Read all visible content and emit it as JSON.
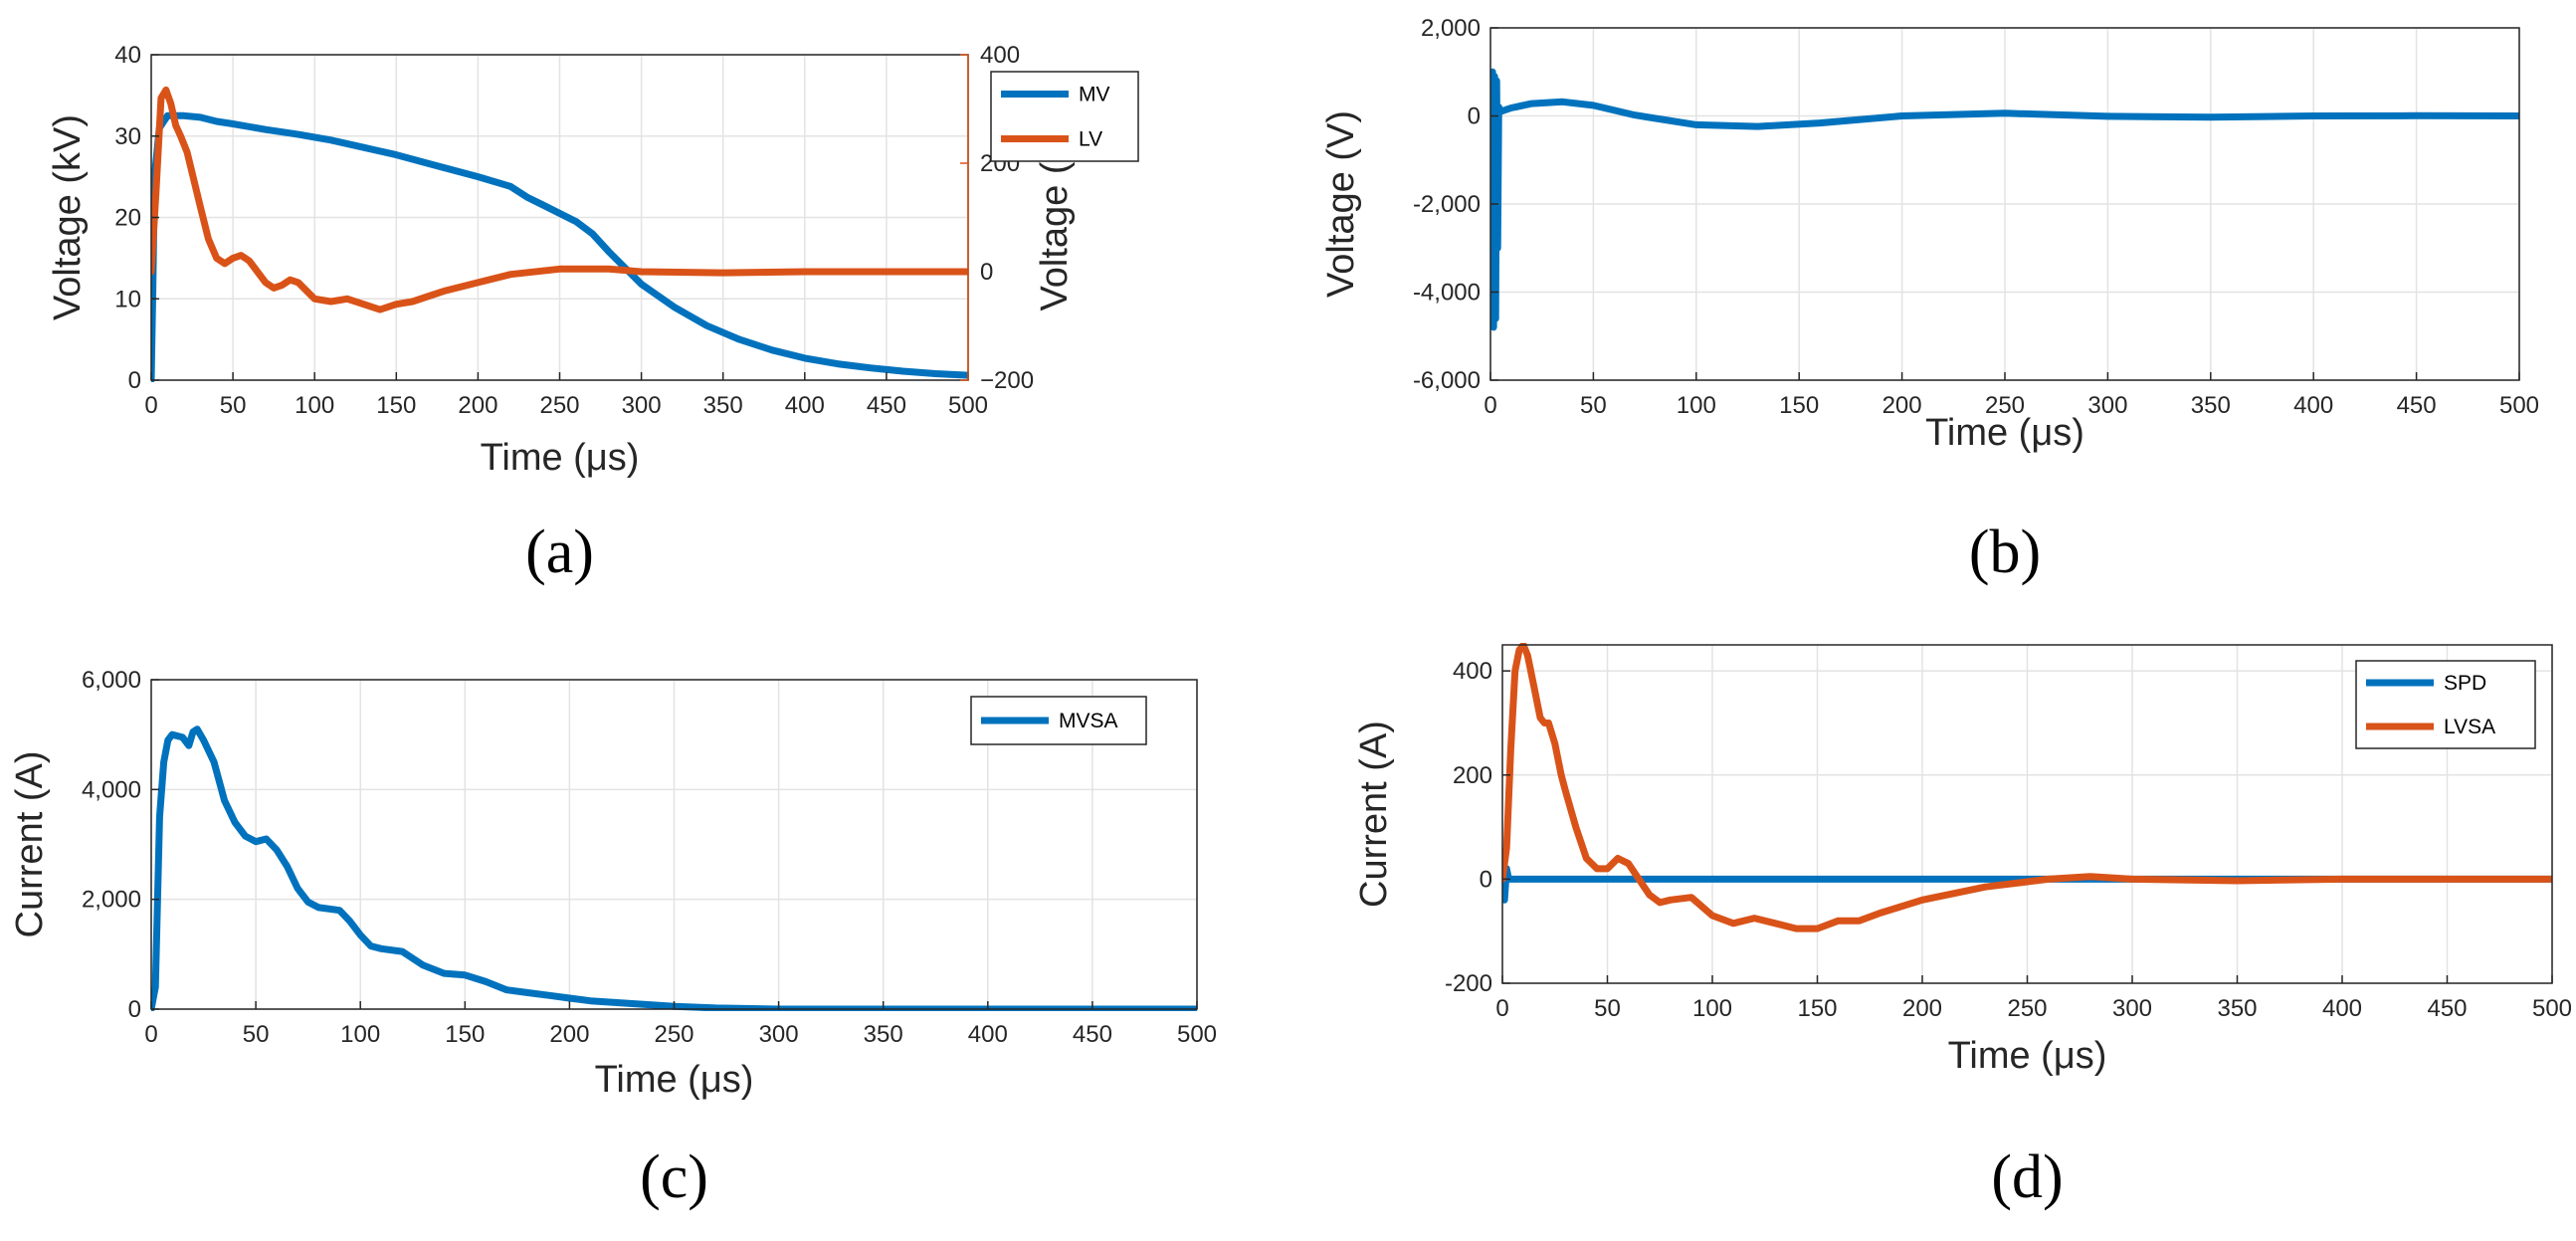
{
  "colors": {
    "blue": "#0072BD",
    "orange": "#D95319",
    "grid": "#e3e3e3",
    "axis": "#262626"
  },
  "chart_data": [
    {
      "id": "a",
      "panel_label": "(a)",
      "type": "line",
      "xlabel": "Time (μs)",
      "ylabel": "Voltage (kV)",
      "ylabel_right": "Voltage (V)",
      "xlim": [
        0,
        500
      ],
      "ylim": [
        0,
        40
      ],
      "ylim_right": [
        -200,
        400
      ],
      "xticks": [
        0,
        50,
        100,
        150,
        200,
        250,
        300,
        350,
        400,
        450,
        500
      ],
      "xtick_labels": [
        "0",
        "50",
        "100",
        "150",
        "200",
        "250",
        "300",
        "350",
        "400",
        "450",
        "500"
      ],
      "yticks": [
        0,
        10,
        20,
        30,
        40
      ],
      "ytick_labels": [
        "0",
        "10",
        "20",
        "30",
        "40"
      ],
      "yticks_right": [
        -200,
        0,
        200,
        400
      ],
      "ytick_labels_right": [
        "−200",
        "0",
        "200",
        "400"
      ],
      "grid": true,
      "legend": "top-right",
      "series": [
        {
          "name": "MV",
          "color": "blue",
          "axis": "left",
          "x": [
            0,
            1,
            2,
            5,
            10,
            20,
            30,
            40,
            50,
            70,
            90,
            110,
            130,
            150,
            170,
            200,
            220,
            230,
            240,
            260,
            270,
            280,
            300,
            320,
            340,
            360,
            380,
            400,
            420,
            440,
            460,
            480,
            500
          ],
          "y": [
            0,
            11,
            25,
            31,
            32.5,
            32.5,
            32.3,
            31.8,
            31.5,
            30.8,
            30.2,
            29.5,
            28.6,
            27.7,
            26.6,
            25.0,
            23.8,
            22.5,
            21.5,
            19.5,
            18.0,
            15.8,
            11.8,
            9.0,
            6.7,
            5.0,
            3.7,
            2.7,
            2.0,
            1.5,
            1.1,
            0.8,
            0.6
          ]
        },
        {
          "name": "LV",
          "color": "orange",
          "axis": "right",
          "x": [
            0,
            3,
            6,
            9,
            12,
            15,
            18,
            22,
            26,
            30,
            35,
            40,
            45,
            50,
            55,
            60,
            65,
            70,
            75,
            80,
            85,
            90,
            95,
            100,
            110,
            120,
            130,
            140,
            150,
            160,
            170,
            180,
            200,
            220,
            250,
            280,
            300,
            350,
            400,
            450,
            500
          ],
          "y": [
            0,
            150,
            320,
            335,
            310,
            270,
            250,
            220,
            170,
            120,
            60,
            25,
            15,
            25,
            30,
            20,
            0,
            -20,
            -30,
            -25,
            -15,
            -20,
            -35,
            -50,
            -55,
            -50,
            -60,
            -70,
            -60,
            -55,
            -45,
            -35,
            -20,
            -5,
            5,
            5,
            0,
            -2,
            0,
            0,
            0
          ]
        }
      ]
    },
    {
      "id": "b",
      "panel_label": "(b)",
      "type": "line",
      "xlabel": "Time (μs)",
      "ylabel": "Voltage (V)",
      "xlim": [
        0,
        500
      ],
      "ylim": [
        -6000,
        2000
      ],
      "xticks": [
        0,
        50,
        100,
        150,
        200,
        250,
        300,
        350,
        400,
        450,
        500
      ],
      "xtick_labels": [
        "0",
        "50",
        "100",
        "150",
        "200",
        "250",
        "300",
        "350",
        "400",
        "450",
        "500"
      ],
      "yticks": [
        -6000,
        -4000,
        -2000,
        0,
        2000
      ],
      "ytick_labels": [
        "-6,000",
        "-4,000",
        "-2,000",
        "0",
        "2,000"
      ],
      "grid": true,
      "series": [
        {
          "name": "",
          "color": "blue",
          "axis": "left",
          "x": [
            0,
            1,
            1.5,
            2,
            2.5,
            3,
            3.5,
            4,
            5,
            10,
            20,
            35,
            50,
            70,
            100,
            130,
            160,
            200,
            250,
            300,
            350,
            400,
            450,
            500
          ],
          "y": [
            0,
            1000,
            -4800,
            900,
            -4600,
            800,
            -3000,
            200,
            100,
            180,
            280,
            320,
            240,
            20,
            -200,
            -240,
            -160,
            0,
            60,
            -10,
            -30,
            0,
            5,
            0
          ]
        }
      ]
    },
    {
      "id": "c",
      "panel_label": "(c)",
      "type": "line",
      "xlabel": "Time (μs)",
      "ylabel": "Current (A)",
      "xlim": [
        0,
        500
      ],
      "ylim": [
        0,
        6000
      ],
      "xticks": [
        0,
        50,
        100,
        150,
        200,
        250,
        300,
        350,
        400,
        450,
        500
      ],
      "xtick_labels": [
        "0",
        "50",
        "100",
        "150",
        "200",
        "250",
        "300",
        "350",
        "400",
        "450",
        "500"
      ],
      "yticks": [
        0,
        2000,
        4000,
        6000
      ],
      "ytick_labels": [
        "0",
        "2,000",
        "4,000",
        "6,000"
      ],
      "grid": true,
      "legend": "top-right",
      "series": [
        {
          "name": "MVSA",
          "color": "blue",
          "axis": "left",
          "x": [
            0,
            2,
            4,
            6,
            8,
            10,
            15,
            18,
            20,
            22,
            25,
            30,
            35,
            40,
            45,
            50,
            55,
            60,
            65,
            70,
            75,
            80,
            90,
            95,
            100,
            105,
            110,
            120,
            130,
            140,
            150,
            160,
            170,
            180,
            190,
            200,
            210,
            230,
            250,
            270,
            300,
            500
          ],
          "y": [
            0,
            400,
            3500,
            4500,
            4900,
            5000,
            4950,
            4800,
            5050,
            5100,
            4900,
            4500,
            3800,
            3400,
            3150,
            3050,
            3100,
            2900,
            2600,
            2200,
            1950,
            1850,
            1800,
            1600,
            1350,
            1150,
            1100,
            1050,
            800,
            650,
            620,
            500,
            350,
            300,
            250,
            200,
            150,
            100,
            50,
            20,
            0,
            0
          ]
        }
      ]
    },
    {
      "id": "d",
      "panel_label": "(d)",
      "type": "line",
      "xlabel": "Time (μs)",
      "ylabel": "Current (A)",
      "xlim": [
        0,
        500
      ],
      "ylim": [
        -200,
        450
      ],
      "xticks": [
        0,
        50,
        100,
        150,
        200,
        250,
        300,
        350,
        400,
        450,
        500
      ],
      "xtick_labels": [
        "0",
        "50",
        "100",
        "150",
        "200",
        "250",
        "300",
        "350",
        "400",
        "450",
        "500"
      ],
      "yticks": [
        -200,
        0,
        200,
        400
      ],
      "ytick_labels": [
        "-200",
        "0",
        "200",
        "400"
      ],
      "grid": true,
      "legend": "top-right",
      "series": [
        {
          "name": "SPD",
          "color": "blue",
          "axis": "left",
          "x": [
            0,
            1,
            2,
            3,
            500
          ],
          "y": [
            0,
            -40,
            20,
            0,
            0
          ]
        },
        {
          "name": "LVSA",
          "color": "orange",
          "axis": "left",
          "x": [
            0,
            2,
            4,
            6,
            8,
            10,
            12,
            15,
            18,
            20,
            22,
            25,
            28,
            30,
            35,
            40,
            45,
            50,
            55,
            60,
            65,
            70,
            75,
            80,
            90,
            100,
            110,
            120,
            130,
            140,
            150,
            160,
            170,
            180,
            200,
            230,
            260,
            280,
            300,
            350,
            400,
            500
          ],
          "y": [
            0,
            60,
            250,
            400,
            440,
            450,
            430,
            370,
            310,
            300,
            300,
            260,
            200,
            170,
            100,
            40,
            20,
            20,
            40,
            30,
            0,
            -30,
            -45,
            -40,
            -35,
            -70,
            -85,
            -75,
            -85,
            -95,
            -95,
            -80,
            -80,
            -65,
            -40,
            -15,
            0,
            5,
            0,
            -3,
            0,
            0
          ]
        }
      ]
    }
  ]
}
